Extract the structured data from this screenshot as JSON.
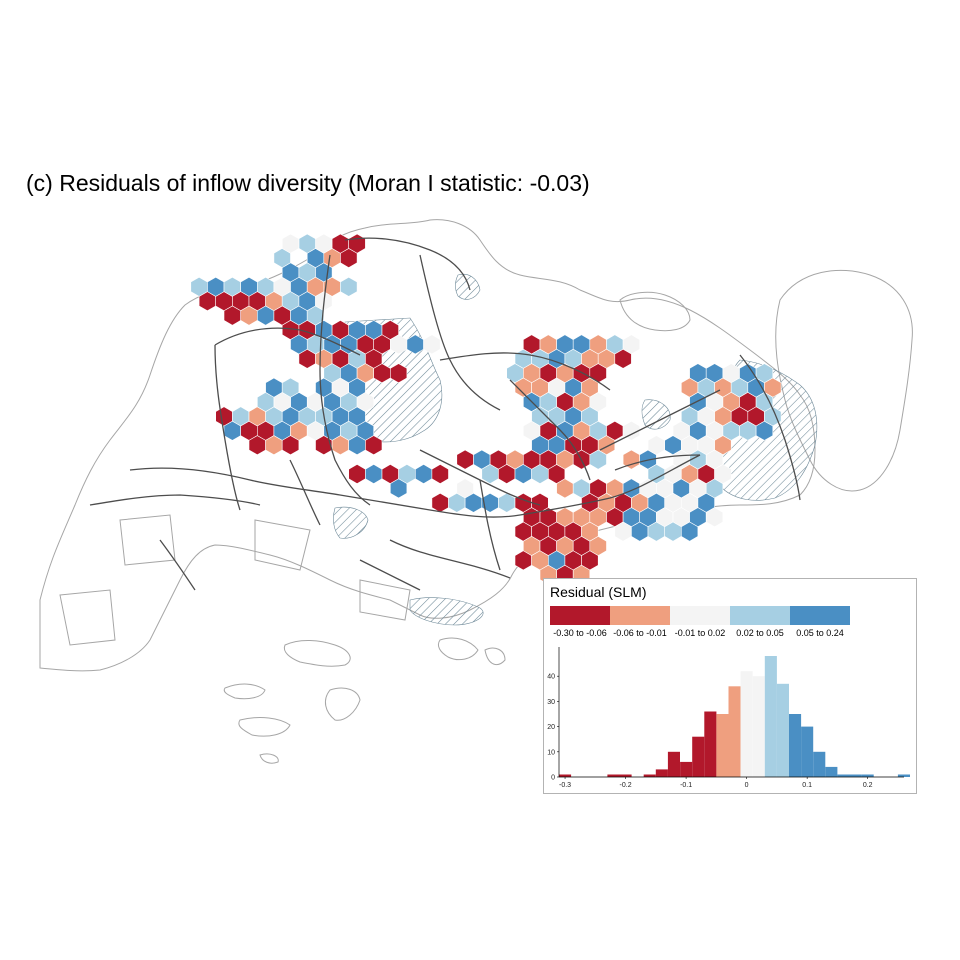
{
  "title": "(c) Residuals of inflow diversity (Moran I statistic: -0.03)",
  "legend": {
    "title": "Residual (SLM)",
    "classes": [
      {
        "label": "-0.30 to -0.06",
        "color": "#b2182b"
      },
      {
        "label": "-0.06 to -0.01",
        "color": "#ef a07e"
      },
      {
        "label": "-0.01 to 0.02",
        "color": "#f7f7f7"
      },
      {
        "label": "0.02 to 0.05",
        "color": "#a6cfe3"
      },
      {
        "label": "0.05 to 0.24",
        "color": "#4a8fc4"
      }
    ]
  },
  "chart_data": {
    "type": "bar",
    "description_kind": "histogram",
    "x_ticks": [
      "-0.3",
      "-0.2",
      "-0.1",
      "0",
      "0.1",
      "0.2"
    ],
    "y_ticks": [
      "0",
      "10",
      "20",
      "30",
      "40"
    ],
    "xlim": [
      -0.31,
      0.26
    ],
    "ylim": [
      0,
      50
    ],
    "bin_width": 0.02,
    "bins": [
      {
        "x0": -0.31,
        "count": 1,
        "cls": 0
      },
      {
        "x0": -0.23,
        "count": 1,
        "cls": 0
      },
      {
        "x0": -0.21,
        "count": 1,
        "cls": 0
      },
      {
        "x0": -0.17,
        "count": 1,
        "cls": 0
      },
      {
        "x0": -0.15,
        "count": 3,
        "cls": 0
      },
      {
        "x0": -0.13,
        "count": 10,
        "cls": 0
      },
      {
        "x0": -0.11,
        "count": 6,
        "cls": 0
      },
      {
        "x0": -0.09,
        "count": 16,
        "cls": 0
      },
      {
        "x0": -0.07,
        "count": 26,
        "cls": 0
      },
      {
        "x0": -0.05,
        "count": 25,
        "cls": 1
      },
      {
        "x0": -0.03,
        "count": 36,
        "cls": 1
      },
      {
        "x0": -0.01,
        "count": 42,
        "cls": 2
      },
      {
        "x0": 0.01,
        "count": 40,
        "cls": 2
      },
      {
        "x0": 0.03,
        "count": 48,
        "cls": 3
      },
      {
        "x0": 0.05,
        "count": 37,
        "cls": 3
      },
      {
        "x0": 0.07,
        "count": 25,
        "cls": 4
      },
      {
        "x0": 0.09,
        "count": 20,
        "cls": 4
      },
      {
        "x0": 0.11,
        "count": 10,
        "cls": 4
      },
      {
        "x0": 0.13,
        "count": 4,
        "cls": 4
      },
      {
        "x0": 0.15,
        "count": 1,
        "cls": 4
      },
      {
        "x0": 0.17,
        "count": 1,
        "cls": 4
      },
      {
        "x0": 0.19,
        "count": 1,
        "cls": 4
      },
      {
        "x0": 0.25,
        "count": 1,
        "cls": 4
      }
    ]
  },
  "hexes": [
    {
      "q": -12,
      "r": 3,
      "c": 0
    },
    {
      "q": -11,
      "r": 3,
      "c": 0
    },
    {
      "q": -12,
      "r": 2,
      "c": 3
    },
    {
      "q": -11,
      "r": 2,
      "c": 4
    },
    {
      "q": -10,
      "r": 2,
      "c": 3
    },
    {
      "q": -9,
      "r": 2,
      "c": 4
    },
    {
      "q": -8,
      "r": 2,
      "c": 3
    },
    {
      "q": -7,
      "r": 2,
      "c": 2
    },
    {
      "q": -6,
      "r": 2,
      "c": 4
    },
    {
      "q": -10,
      "r": 3,
      "c": 0
    },
    {
      "q": -9,
      "r": 3,
      "c": 0
    },
    {
      "q": -8,
      "r": 3,
      "c": 1
    },
    {
      "q": -7,
      "r": 3,
      "c": 3
    },
    {
      "q": -6,
      "r": 3,
      "c": 4
    },
    {
      "q": -5,
      "r": 3,
      "c": 2
    },
    {
      "q": -11,
      "r": 4,
      "c": 0
    },
    {
      "q": -10,
      "r": 4,
      "c": 1
    },
    {
      "q": -9,
      "r": 4,
      "c": 4
    },
    {
      "q": -8,
      "r": 4,
      "c": 0
    },
    {
      "q": -7,
      "r": 4,
      "c": 4
    },
    {
      "q": -6,
      "r": 4,
      "c": 3
    },
    {
      "q": -8,
      "r": 5,
      "c": 0
    },
    {
      "q": -7,
      "r": 5,
      "c": 0
    },
    {
      "q": -6,
      "r": 5,
      "c": 4
    },
    {
      "q": -5,
      "r": 5,
      "c": 0
    },
    {
      "q": -4,
      "r": 5,
      "c": 4
    },
    {
      "q": -3,
      "r": 5,
      "c": 4
    },
    {
      "q": -2,
      "r": 5,
      "c": 0
    },
    {
      "q": -5,
      "r": 6,
      "c": 4
    },
    {
      "q": -4,
      "r": 6,
      "c": 0
    },
    {
      "q": -3,
      "r": 6,
      "c": 0
    },
    {
      "q": -2,
      "r": 6,
      "c": 2
    },
    {
      "q": -1,
      "r": 6,
      "c": 4
    },
    {
      "q": 0,
      "r": 6,
      "c": 2
    },
    {
      "q": -6,
      "r": 1,
      "c": 4
    },
    {
      "q": -5,
      "r": 1,
      "c": 3
    },
    {
      "q": -4,
      "r": 1,
      "c": 4
    },
    {
      "q": -5,
      "r": 2,
      "c": 1
    },
    {
      "q": -4,
      "r": 2,
      "c": 1
    },
    {
      "q": -3,
      "r": 2,
      "c": 3
    },
    {
      "q": -6,
      "r": 0,
      "c": 3
    },
    {
      "q": -4,
      "r": 0,
      "c": 4
    },
    {
      "q": -3,
      "r": 0,
      "c": 1
    },
    {
      "q": -2,
      "r": 0,
      "c": 0
    },
    {
      "q": -3,
      "r": -1,
      "c": 2
    },
    {
      "q": -2,
      "r": -1,
      "c": 0
    },
    {
      "q": -1,
      "r": -1,
      "c": 0
    },
    {
      "q": -4,
      "r": -1,
      "c": 3
    },
    {
      "q": -5,
      "r": -1,
      "c": 2
    },
    {
      "q": -15,
      "r": 11,
      "c": 0
    },
    {
      "q": -14,
      "r": 11,
      "c": 3
    },
    {
      "q": -13,
      "r": 11,
      "c": 1
    },
    {
      "q": -12,
      "r": 11,
      "c": 3
    },
    {
      "q": -11,
      "r": 11,
      "c": 4
    },
    {
      "q": -15,
      "r": 12,
      "c": 4
    },
    {
      "q": -14,
      "r": 12,
      "c": 0
    },
    {
      "q": -13,
      "r": 12,
      "c": 0
    },
    {
      "q": -12,
      "r": 12,
      "c": 4
    },
    {
      "q": -11,
      "r": 12,
      "c": 1
    },
    {
      "q": -10,
      "r": 12,
      "c": 2
    },
    {
      "q": -14,
      "r": 13,
      "c": 0
    },
    {
      "q": -13,
      "r": 13,
      "c": 1
    },
    {
      "q": -12,
      "r": 13,
      "c": 0
    },
    {
      "q": -10,
      "r": 11,
      "c": 3
    },
    {
      "q": -9,
      "r": 11,
      "c": 3
    },
    {
      "q": -8,
      "r": 11,
      "c": 4
    },
    {
      "q": -7,
      "r": 11,
      "c": 4
    },
    {
      "q": -9,
      "r": 12,
      "c": 4
    },
    {
      "q": -8,
      "r": 12,
      "c": 3
    },
    {
      "q": -7,
      "r": 12,
      "c": 4
    },
    {
      "q": -10,
      "r": 13,
      "c": 0
    },
    {
      "q": -9,
      "r": 13,
      "c": 1
    },
    {
      "q": -8,
      "r": 13,
      "c": 4
    },
    {
      "q": -7,
      "r": 13,
      "c": 0
    },
    {
      "q": -9,
      "r": 10,
      "c": 2
    },
    {
      "q": -8,
      "r": 10,
      "c": 4
    },
    {
      "q": -7,
      "r": 10,
      "c": 3
    },
    {
      "q": -6,
      "r": 10,
      "c": 2
    },
    {
      "q": -10,
      "r": 10,
      "c": 4
    },
    {
      "q": -11,
      "r": 10,
      "c": 2
    },
    {
      "q": -12,
      "r": 10,
      "c": 3
    },
    {
      "q": -8,
      "r": 9,
      "c": 4
    },
    {
      "q": -7,
      "r": 9,
      "c": 2
    },
    {
      "q": -6,
      "r": 9,
      "c": 4
    },
    {
      "q": -9,
      "r": 15,
      "c": 0
    },
    {
      "q": -8,
      "r": 15,
      "c": 4
    },
    {
      "q": -7,
      "r": 15,
      "c": 0
    },
    {
      "q": -6,
      "r": 15,
      "c": 3
    },
    {
      "q": -5,
      "r": 15,
      "c": 4
    },
    {
      "q": -4,
      "r": 15,
      "c": 0
    },
    {
      "q": -7,
      "r": 16,
      "c": 4
    },
    {
      "q": -3,
      "r": 16,
      "c": 2
    },
    {
      "q": -5,
      "r": 17,
      "c": 0
    },
    {
      "q": -4,
      "r": 17,
      "c": 3
    },
    {
      "q": -3,
      "r": 17,
      "c": 4
    },
    {
      "q": -2,
      "r": 17,
      "c": 4
    },
    {
      "q": -1,
      "r": 17,
      "c": 3
    },
    {
      "q": 0,
      "r": 17,
      "c": 0
    },
    {
      "q": 1,
      "r": 17,
      "c": 0
    },
    {
      "q": -8,
      "r": 7,
      "c": 0
    },
    {
      "q": -7,
      "r": 7,
      "c": 1
    },
    {
      "q": -6,
      "r": 7,
      "c": 0
    },
    {
      "q": -5,
      "r": 7,
      "c": 3
    },
    {
      "q": -4,
      "r": 7,
      "c": 0
    },
    {
      "q": -7,
      "r": 8,
      "c": 3
    },
    {
      "q": -6,
      "r": 8,
      "c": 4
    },
    {
      "q": -5,
      "r": 8,
      "c": 1
    },
    {
      "q": -4,
      "r": 8,
      "c": 0
    },
    {
      "q": -3,
      "r": 8,
      "c": 0
    },
    {
      "q": -6,
      "r": 6,
      "c": 4
    },
    {
      "q": -7,
      "r": 6,
      "c": 3
    },
    {
      "q": -8,
      "r": 6,
      "c": 4
    },
    {
      "q": -2,
      "r": 14,
      "c": 0
    },
    {
      "q": -1,
      "r": 14,
      "c": 4
    },
    {
      "q": 0,
      "r": 14,
      "c": 0
    },
    {
      "q": 1,
      "r": 14,
      "c": 1
    },
    {
      "q": -1,
      "r": 15,
      "c": 3
    },
    {
      "q": 0,
      "r": 15,
      "c": 0
    },
    {
      "q": 1,
      "r": 15,
      "c": 4
    },
    {
      "q": 2,
      "r": 15,
      "c": 3
    },
    {
      "q": 3,
      "r": 15,
      "c": 0
    },
    {
      "q": 0,
      "r": 18,
      "c": 0
    },
    {
      "q": 1,
      "r": 18,
      "c": 0
    },
    {
      "q": 2,
      "r": 18,
      "c": 1
    },
    {
      "q": 3,
      "r": 18,
      "c": 0
    },
    {
      "q": 4,
      "r": 18,
      "c": 2
    },
    {
      "q": -1,
      "r": 19,
      "c": 0
    },
    {
      "q": 0,
      "r": 19,
      "c": 0
    },
    {
      "q": 1,
      "r": 19,
      "c": 0
    },
    {
      "q": 2,
      "r": 19,
      "c": 0
    },
    {
      "q": 3,
      "r": 19,
      "c": 1
    },
    {
      "q": -1,
      "r": 20,
      "c": 1
    },
    {
      "q": 0,
      "r": 20,
      "c": 0
    },
    {
      "q": 1,
      "r": 20,
      "c": 1
    },
    {
      "q": 2,
      "r": 20,
      "c": 0
    },
    {
      "q": 3,
      "r": 20,
      "c": 1
    },
    {
      "q": -2,
      "r": 21,
      "c": 0
    },
    {
      "q": -1,
      "r": 21,
      "c": 1
    },
    {
      "q": 0,
      "r": 21,
      "c": 4
    },
    {
      "q": 1,
      "r": 21,
      "c": 0
    },
    {
      "q": 2,
      "r": 21,
      "c": 0
    },
    {
      "q": -1,
      "r": 22,
      "c": 1
    },
    {
      "q": 0,
      "r": 22,
      "c": 0
    },
    {
      "q": 1,
      "r": 22,
      "c": 1
    },
    {
      "q": 6,
      "r": 6,
      "c": 0
    },
    {
      "q": 7,
      "r": 6,
      "c": 1
    },
    {
      "q": 8,
      "r": 6,
      "c": 4
    },
    {
      "q": 9,
      "r": 6,
      "c": 4
    },
    {
      "q": 10,
      "r": 6,
      "c": 1
    },
    {
      "q": 11,
      "r": 6,
      "c": 3
    },
    {
      "q": 12,
      "r": 6,
      "c": 2
    },
    {
      "q": 5,
      "r": 7,
      "c": 3
    },
    {
      "q": 6,
      "r": 7,
      "c": 3
    },
    {
      "q": 7,
      "r": 7,
      "c": 4
    },
    {
      "q": 8,
      "r": 7,
      "c": 3
    },
    {
      "q": 9,
      "r": 7,
      "c": 1
    },
    {
      "q": 10,
      "r": 7,
      "c": 1
    },
    {
      "q": 11,
      "r": 7,
      "c": 0
    },
    {
      "q": 4,
      "r": 8,
      "c": 3
    },
    {
      "q": 5,
      "r": 8,
      "c": 1
    },
    {
      "q": 6,
      "r": 8,
      "c": 0
    },
    {
      "q": 7,
      "r": 8,
      "c": 1
    },
    {
      "q": 8,
      "r": 8,
      "c": 0
    },
    {
      "q": 9,
      "r": 8,
      "c": 0
    },
    {
      "q": 4,
      "r": 9,
      "c": 1
    },
    {
      "q": 5,
      "r": 9,
      "c": 1
    },
    {
      "q": 6,
      "r": 9,
      "c": 2
    },
    {
      "q": 7,
      "r": 9,
      "c": 4
    },
    {
      "q": 8,
      "r": 9,
      "c": 1
    },
    {
      "q": 4,
      "r": 10,
      "c": 4
    },
    {
      "q": 5,
      "r": 10,
      "c": 3
    },
    {
      "q": 6,
      "r": 10,
      "c": 0
    },
    {
      "q": 7,
      "r": 10,
      "c": 1
    },
    {
      "q": 8,
      "r": 10,
      "c": 2
    },
    {
      "q": 4,
      "r": 11,
      "c": 3
    },
    {
      "q": 5,
      "r": 11,
      "c": 3
    },
    {
      "q": 6,
      "r": 11,
      "c": 4
    },
    {
      "q": 7,
      "r": 11,
      "c": 3
    },
    {
      "q": 3,
      "r": 12,
      "c": 2
    },
    {
      "q": 4,
      "r": 12,
      "c": 0
    },
    {
      "q": 5,
      "r": 12,
      "c": 4
    },
    {
      "q": 6,
      "r": 12,
      "c": 1
    },
    {
      "q": 7,
      "r": 12,
      "c": 3
    },
    {
      "q": 8,
      "r": 12,
      "c": 0
    },
    {
      "q": 3,
      "r": 13,
      "c": 4
    },
    {
      "q": 4,
      "r": 13,
      "c": 4
    },
    {
      "q": 5,
      "r": 13,
      "c": 0
    },
    {
      "q": 6,
      "r": 13,
      "c": 0
    },
    {
      "q": 7,
      "r": 13,
      "c": 1
    },
    {
      "q": 2,
      "r": 14,
      "c": 0
    },
    {
      "q": 3,
      "r": 14,
      "c": 0
    },
    {
      "q": 4,
      "r": 14,
      "c": 1
    },
    {
      "q": 5,
      "r": 14,
      "c": 0
    },
    {
      "q": 6,
      "r": 14,
      "c": 3
    },
    {
      "q": 8,
      "r": 14,
      "c": 1
    },
    {
      "q": 9,
      "r": 14,
      "c": 4
    },
    {
      "q": 3,
      "r": 16,
      "c": 1
    },
    {
      "q": 4,
      "r": 16,
      "c": 3
    },
    {
      "q": 5,
      "r": 16,
      "c": 0
    },
    {
      "q": 6,
      "r": 16,
      "c": 1
    },
    {
      "q": 7,
      "r": 16,
      "c": 4
    },
    {
      "q": 8,
      "r": 16,
      "c": 2
    },
    {
      "q": 9,
      "r": 16,
      "c": 2
    },
    {
      "q": 10,
      "r": 16,
      "c": 4
    },
    {
      "q": 11,
      "r": 16,
      "c": 2
    },
    {
      "q": 12,
      "r": 16,
      "c": 3
    },
    {
      "q": 4,
      "r": 17,
      "c": 0
    },
    {
      "q": 5,
      "r": 17,
      "c": 1
    },
    {
      "q": 6,
      "r": 17,
      "c": 0
    },
    {
      "q": 7,
      "r": 17,
      "c": 1
    },
    {
      "q": 8,
      "r": 17,
      "c": 4
    },
    {
      "q": 9,
      "r": 17,
      "c": 2
    },
    {
      "q": 10,
      "r": 17,
      "c": 2
    },
    {
      "q": 11,
      "r": 17,
      "c": 4
    },
    {
      "q": 3,
      "r": 18,
      "c": 1
    },
    {
      "q": 4,
      "r": 18,
      "c": 1
    },
    {
      "q": 5,
      "r": 18,
      "c": 0
    },
    {
      "q": 6,
      "r": 18,
      "c": 4
    },
    {
      "q": 7,
      "r": 18,
      "c": 4
    },
    {
      "q": 8,
      "r": 18,
      "c": 2
    },
    {
      "q": 9,
      "r": 18,
      "c": 2
    },
    {
      "q": 10,
      "r": 18,
      "c": 4
    },
    {
      "q": 11,
      "r": 18,
      "c": 2
    },
    {
      "q": 5,
      "r": 19,
      "c": 2
    },
    {
      "q": 6,
      "r": 19,
      "c": 4
    },
    {
      "q": 7,
      "r": 19,
      "c": 3
    },
    {
      "q": 8,
      "r": 19,
      "c": 3
    },
    {
      "q": 9,
      "r": 19,
      "c": 4
    },
    {
      "q": 15,
      "r": 8,
      "c": 4
    },
    {
      "q": 16,
      "r": 8,
      "c": 4
    },
    {
      "q": 17,
      "r": 8,
      "c": 2
    },
    {
      "q": 18,
      "r": 8,
      "c": 4
    },
    {
      "q": 19,
      "r": 8,
      "c": 3
    },
    {
      "q": 14,
      "r": 9,
      "c": 1
    },
    {
      "q": 15,
      "r": 9,
      "c": 3
    },
    {
      "q": 16,
      "r": 9,
      "c": 1
    },
    {
      "q": 17,
      "r": 9,
      "c": 3
    },
    {
      "q": 18,
      "r": 9,
      "c": 4
    },
    {
      "q": 19,
      "r": 9,
      "c": 1
    },
    {
      "q": 14,
      "r": 10,
      "c": 4
    },
    {
      "q": 15,
      "r": 10,
      "c": 2
    },
    {
      "q": 16,
      "r": 10,
      "c": 1
    },
    {
      "q": 17,
      "r": 10,
      "c": 0
    },
    {
      "q": 18,
      "r": 10,
      "c": 3
    },
    {
      "q": 13,
      "r": 11,
      "c": 3
    },
    {
      "q": 14,
      "r": 11,
      "c": 2
    },
    {
      "q": 15,
      "r": 11,
      "c": 1
    },
    {
      "q": 16,
      "r": 11,
      "c": 0
    },
    {
      "q": 17,
      "r": 11,
      "c": 0
    },
    {
      "q": 18,
      "r": 11,
      "c": 3
    },
    {
      "q": 12,
      "r": 12,
      "c": 2
    },
    {
      "q": 13,
      "r": 12,
      "c": 4
    },
    {
      "q": 14,
      "r": 12,
      "c": 2
    },
    {
      "q": 15,
      "r": 12,
      "c": 3
    },
    {
      "q": 16,
      "r": 12,
      "c": 3
    },
    {
      "q": 17,
      "r": 12,
      "c": 4
    },
    {
      "q": 11,
      "r": 13,
      "c": 4
    },
    {
      "q": 12,
      "r": 13,
      "c": 2
    },
    {
      "q": 13,
      "r": 13,
      "c": 2
    },
    {
      "q": 14,
      "r": 13,
      "c": 1
    },
    {
      "q": 11,
      "r": 14,
      "c": 2
    },
    {
      "q": 12,
      "r": 14,
      "c": 3
    },
    {
      "q": 13,
      "r": 14,
      "c": 2
    },
    {
      "q": 10,
      "r": 15,
      "c": 2
    },
    {
      "q": 11,
      "r": 15,
      "c": 1
    },
    {
      "q": 12,
      "r": 15,
      "c": 0
    },
    {
      "q": 13,
      "r": 15,
      "c": 2
    },
    {
      "q": 10,
      "r": 13,
      "c": 2
    },
    {
      "q": 9,
      "r": 12,
      "c": 2
    },
    {
      "q": 9,
      "r": 15,
      "c": 3
    },
    {
      "q": -11,
      "r": 9,
      "c": 4
    },
    {
      "q": -10,
      "r": 9,
      "c": 3
    }
  ]
}
